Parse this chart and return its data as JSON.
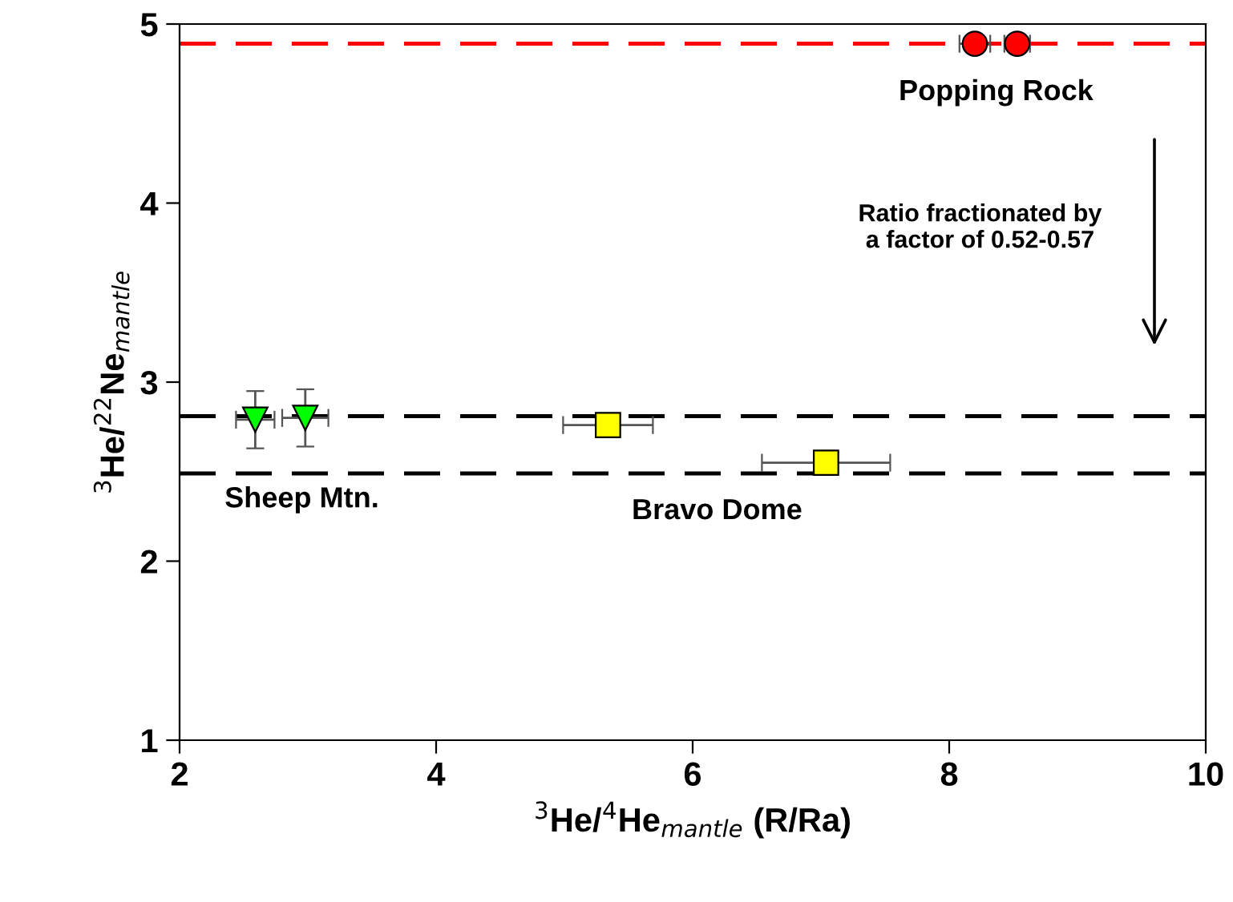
{
  "chart_data": {
    "type": "scatter",
    "xlabel": "$^{3}$He/$^{4}$He$_{mantle}$ (R/Ra)",
    "ylabel": "$^{3}$He/$^{22}$Ne$_{mantle}$",
    "xlim": [
      2,
      10
    ],
    "xticks": [
      2,
      4,
      6,
      8,
      10
    ],
    "ylim": [
      1,
      5
    ],
    "yticks": [
      1,
      2,
      3,
      4,
      5
    ],
    "grid": false,
    "legend": false,
    "series": [
      {
        "name": "Sheep Mtn.",
        "color": "#00ff00",
        "marker": "triangle",
        "x": [
          2.59,
          2.98
        ],
        "values": [
          2.79,
          2.8
        ],
        "errors": [
          0.16,
          0.16
        ],
        "xerrors": [
          0.15,
          0.18
        ]
      },
      {
        "name": "Bravo Dome",
        "color": "#ffff00",
        "marker": "square",
        "x": [
          5.34,
          7.04
        ],
        "values": [
          2.76,
          2.55
        ],
        "errors": [
          null,
          null
        ],
        "xerrors": [
          0.35,
          0.5
        ]
      },
      {
        "name": "Popping Rock",
        "color": "#ff0000",
        "marker": "circle",
        "x": [
          8.2,
          8.53
        ],
        "values": [
          4.89,
          4.89
        ],
        "errors": [
          null,
          null
        ],
        "xerrors": [
          0.12,
          0.1
        ]
      }
    ],
    "ref_lines": [
      {
        "axis": "y",
        "value": 4.89,
        "color": "#ff0000",
        "line_style": "dashed"
      },
      {
        "axis": "y",
        "value": 2.81,
        "color": "#000000",
        "line_style": "dashed"
      },
      {
        "axis": "y",
        "value": 2.49,
        "color": "#000000",
        "line_style": "dashed"
      }
    ],
    "annotations": [
      "Ratio fractionated by\na factor of 0.52-0.57"
    ]
  }
}
